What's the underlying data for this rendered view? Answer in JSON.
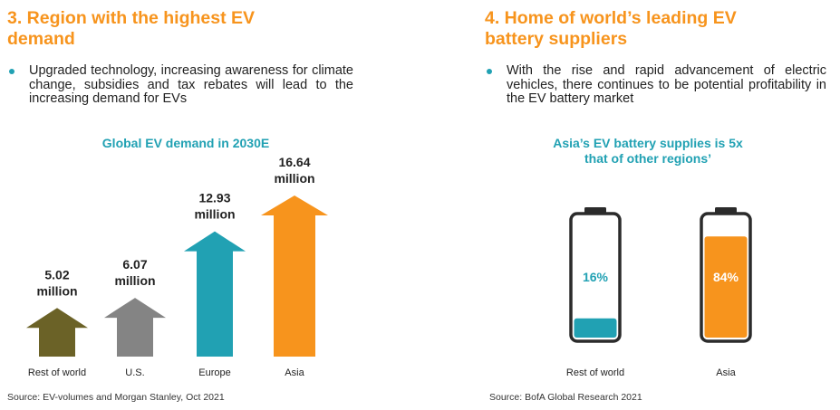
{
  "left_panel": {
    "heading": "3. Region with the highest EV\ndemand",
    "bullet": "Upgraded technology, increasing awareness for climate change, subsidies and tax rebates will lead to the increasing demand for EVs",
    "source": "Source: EV-volumes and Morgan Stanley, Oct 2021"
  },
  "right_panel": {
    "heading": "4. Home of world’s leading EV\nbattery suppliers",
    "bullet": "With the rise and rapid advancement of electric vehicles, there continues to be potential profitability in the EV battery market",
    "source": "Source: BofA Global Research 2021"
  },
  "colors": {
    "accent_orange": "#f7941d",
    "accent_teal": "#21a1b3",
    "olive": "#6b6227",
    "gray": "#848484"
  },
  "chart_data": [
    {
      "type": "bar",
      "title": "Global EV demand in 2030E",
      "categories": [
        "Rest of world",
        "U.S.",
        "Europe",
        "Asia"
      ],
      "values": [
        5.02,
        6.07,
        12.93,
        16.64
      ],
      "value_labels": [
        "5.02",
        "6.07",
        "12.93",
        "16.64"
      ],
      "unit_label": "million",
      "bar_colors": [
        "#6b6227",
        "#848484",
        "#21a1b3",
        "#f7941d"
      ],
      "mark_shape": "arrow",
      "grid": false
    },
    {
      "type": "bar",
      "title": "Asia’s EV battery supplies is 5x\nthat of other regions’",
      "categories": [
        "Rest of world",
        "Asia"
      ],
      "values": [
        16,
        84
      ],
      "value_labels": [
        "16%",
        "84%"
      ],
      "ylim": [
        0,
        100
      ],
      "bar_colors": [
        "#21a1b3",
        "#f7941d"
      ],
      "mark_shape": "battery",
      "grid": false
    }
  ]
}
